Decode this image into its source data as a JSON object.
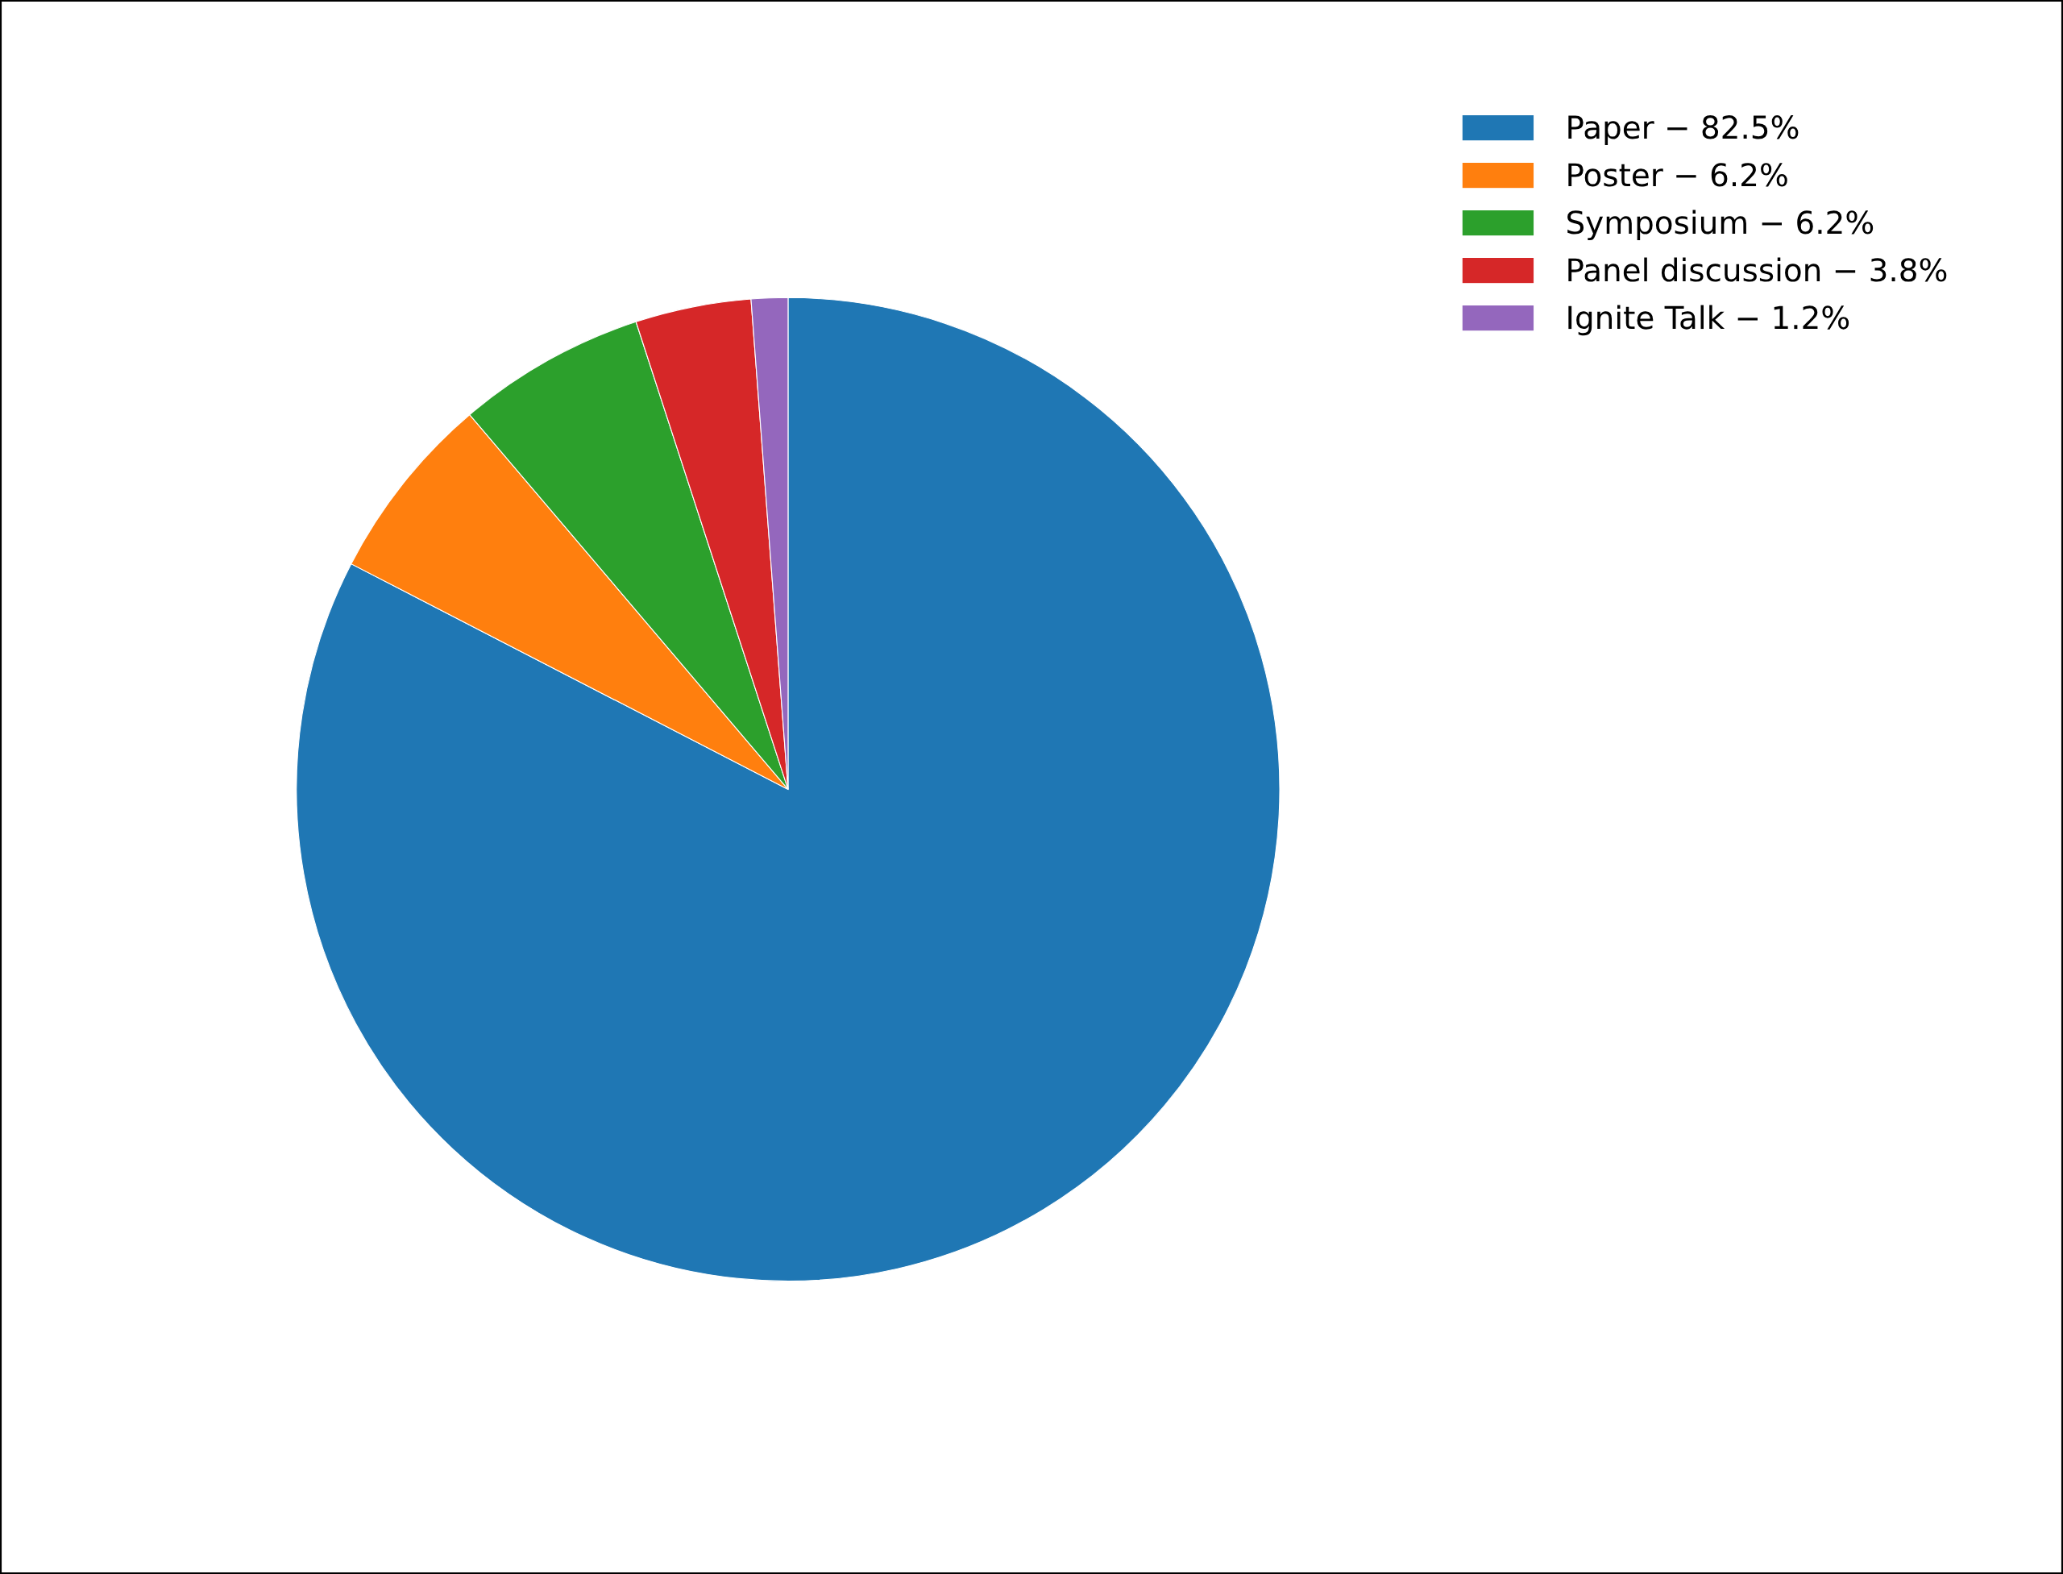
{
  "chart_data": {
    "type": "pie",
    "categories": [
      "Paper − 82.5%",
      "Poster − 6.2%",
      "Symposium − 6.2%",
      "Panel discussion − 3.8%",
      "Ignite Talk − 1.2%"
    ],
    "values": [
      82.5,
      6.2,
      6.2,
      3.8,
      1.2
    ],
    "colors": [
      "#1f77b4",
      "#ff7f0e",
      "#2ca02c",
      "#d62728",
      "#9467bd"
    ],
    "legend": "top right"
  }
}
